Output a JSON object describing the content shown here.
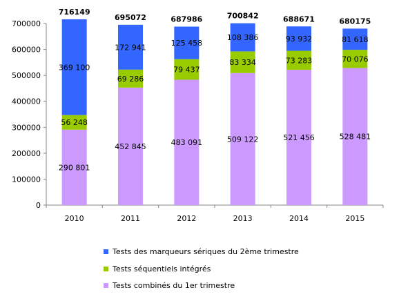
{
  "chart_data": {
    "type": "bar",
    "stacked": true,
    "categories": [
      "2010",
      "2011",
      "2012",
      "2013",
      "2014",
      "2015"
    ],
    "series": [
      {
        "name": "Tests combinés du 1er trimestre",
        "color": "#CC99FF",
        "values": [
          290801,
          452845,
          483091,
          509122,
          521456,
          528481
        ],
        "labels": [
          "290 801",
          "452 845",
          "483 091",
          "509 122",
          "521 456",
          "528 481"
        ]
      },
      {
        "name": "Tests séquentiels intégrés",
        "color": "#99CC00",
        "values": [
          56248,
          69286,
          79437,
          83334,
          73283,
          70076
        ],
        "labels": [
          "56 248",
          "69 286",
          "79 437",
          "83 334",
          "73 283",
          "70 076"
        ]
      },
      {
        "name": "Tests des marqueurs sériques du 2ème trimestre",
        "color": "#3366FF",
        "values": [
          369100,
          172941,
          125458,
          108386,
          93932,
          81618
        ],
        "labels": [
          "369 100",
          "172 941",
          "125 458",
          "108 386",
          "93 932",
          "81 618"
        ]
      }
    ],
    "totals": [
      "716149",
      "695072",
      "687986",
      "700842",
      "688671",
      "680175"
    ],
    "ylim": [
      0,
      700000
    ],
    "yticks": [
      "0",
      "100000",
      "200000",
      "300000",
      "400000",
      "500000",
      "600000",
      "700000"
    ],
    "grid": false,
    "legend_position": "bottom",
    "legend_order": [
      2,
      1,
      0
    ]
  }
}
